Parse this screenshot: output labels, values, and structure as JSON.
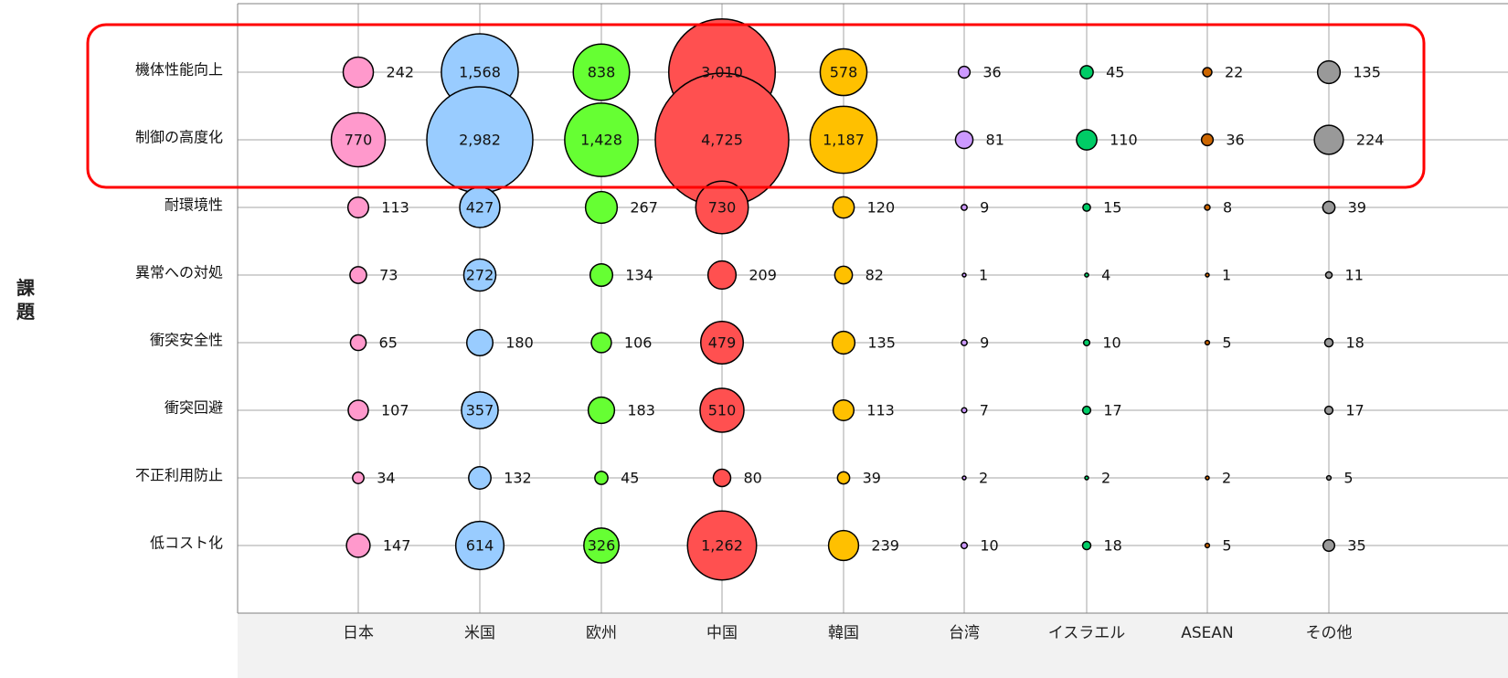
{
  "chart_data": {
    "type": "bubble",
    "title": "",
    "xlabel": "",
    "ylabel": "課題",
    "grid": true,
    "categories_x": [
      "日本",
      "米国",
      "欧州",
      "中国",
      "韓国",
      "台湾",
      "イスラエル",
      "ASEAN",
      "その他"
    ],
    "categories_y": [
      "機体性能向上",
      "制御の高度化",
      "耐環境性",
      "異常への対処",
      "衝突安全性",
      "衝突回避",
      "不正利用防止",
      "低コスト化"
    ],
    "colors": [
      "#ff99cc",
      "#99ccff",
      "#66ff33",
      "#ff5050",
      "#ffc000",
      "#cc99ff",
      "#00cc66",
      "#cc6600",
      "#999999"
    ],
    "values": [
      [
        242,
        1568,
        838,
        3010,
        578,
        36,
        45,
        22,
        135
      ],
      [
        770,
        2982,
        1428,
        4725,
        1187,
        81,
        110,
        36,
        224
      ],
      [
        113,
        427,
        267,
        730,
        120,
        9,
        15,
        8,
        39
      ],
      [
        73,
        272,
        134,
        209,
        82,
        1,
        4,
        1,
        11
      ],
      [
        65,
        180,
        106,
        479,
        135,
        9,
        10,
        5,
        18
      ],
      [
        107,
        357,
        183,
        510,
        113,
        7,
        17,
        null,
        17
      ],
      [
        34,
        132,
        45,
        80,
        39,
        2,
        2,
        2,
        5
      ],
      [
        147,
        614,
        326,
        1262,
        239,
        10,
        18,
        5,
        35
      ]
    ],
    "labels": [
      [
        "242",
        "1,568",
        "838",
        "3,010",
        "578",
        "36",
        "45",
        "22",
        "135"
      ],
      [
        "770",
        "2,982",
        "1,428",
        "4,725",
        "1,187",
        "81",
        "110",
        "36",
        "224"
      ],
      [
        "113",
        "427",
        "267",
        "730",
        "120",
        "9",
        "15",
        "8",
        "39"
      ],
      [
        "73",
        "272",
        "134",
        "209",
        "82",
        "1",
        "4",
        "1",
        "11"
      ],
      [
        "65",
        "180",
        "106",
        "479",
        "135",
        "9",
        "10",
        "5",
        "18"
      ],
      [
        "107",
        "357",
        "183",
        "510",
        "113",
        "7",
        "17",
        "",
        "17"
      ],
      [
        "34",
        "132",
        "45",
        "80",
        "39",
        "2",
        "2",
        "2",
        "5"
      ],
      [
        "147",
        "614",
        "326",
        "1,262",
        "239",
        "10",
        "18",
        "5",
        "35"
      ]
    ],
    "highlight": {
      "rows": [
        "機体性能向上",
        "制御の高度化"
      ],
      "color": "#ff0000"
    }
  }
}
